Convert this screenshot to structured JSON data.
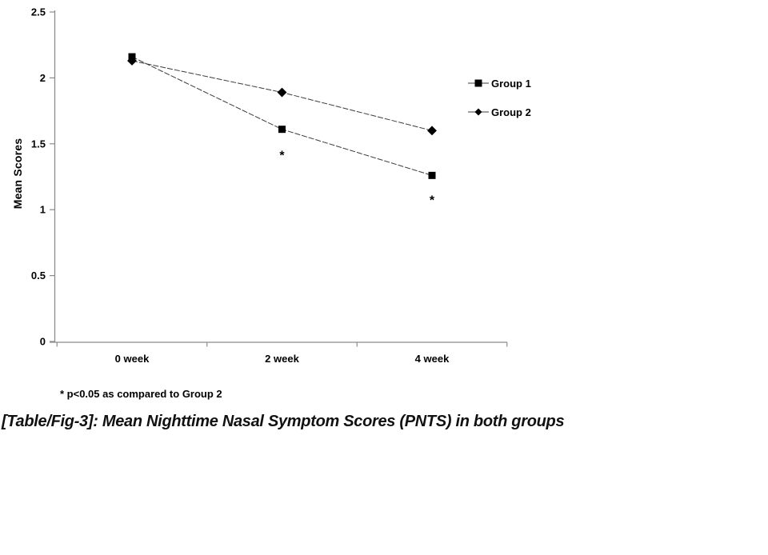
{
  "chart_data": {
    "type": "line",
    "title": "",
    "xlabel": "",
    "ylabel": "Mean Scores",
    "categories": [
      "0 week",
      "2 week",
      "4 week"
    ],
    "series": [
      {
        "name": "Group 1",
        "marker": "square",
        "values": [
          2.16,
          1.61,
          1.26
        ]
      },
      {
        "name": "Group 2",
        "marker": "diamond",
        "values": [
          2.13,
          1.89,
          1.6
        ]
      }
    ],
    "ylim": [
      0,
      2.5
    ],
    "yticks": [
      0,
      0.5,
      1,
      1.5,
      2,
      2.5
    ],
    "ytick_labels": [
      "0",
      "0.5",
      "1",
      "1.5",
      "2",
      "2.5"
    ],
    "grid": false,
    "legend_position": "right",
    "annotations": [
      {
        "text": "*",
        "category_index": 1,
        "series": "Group 1",
        "y": 1.44
      },
      {
        "text": "*",
        "category_index": 2,
        "series": "Group 1",
        "y": 1.1
      }
    ],
    "footnote": "* p<0.05 as compared to Group 2",
    "line_color": "#3c3c3c",
    "axis_color": "#8c8c8c",
    "marker_color": "#000000"
  },
  "caption": {
    "text": "[Table/Fig-3]: Mean Nighttime Nasal Symptom Scores (PNTS) in both groups"
  }
}
